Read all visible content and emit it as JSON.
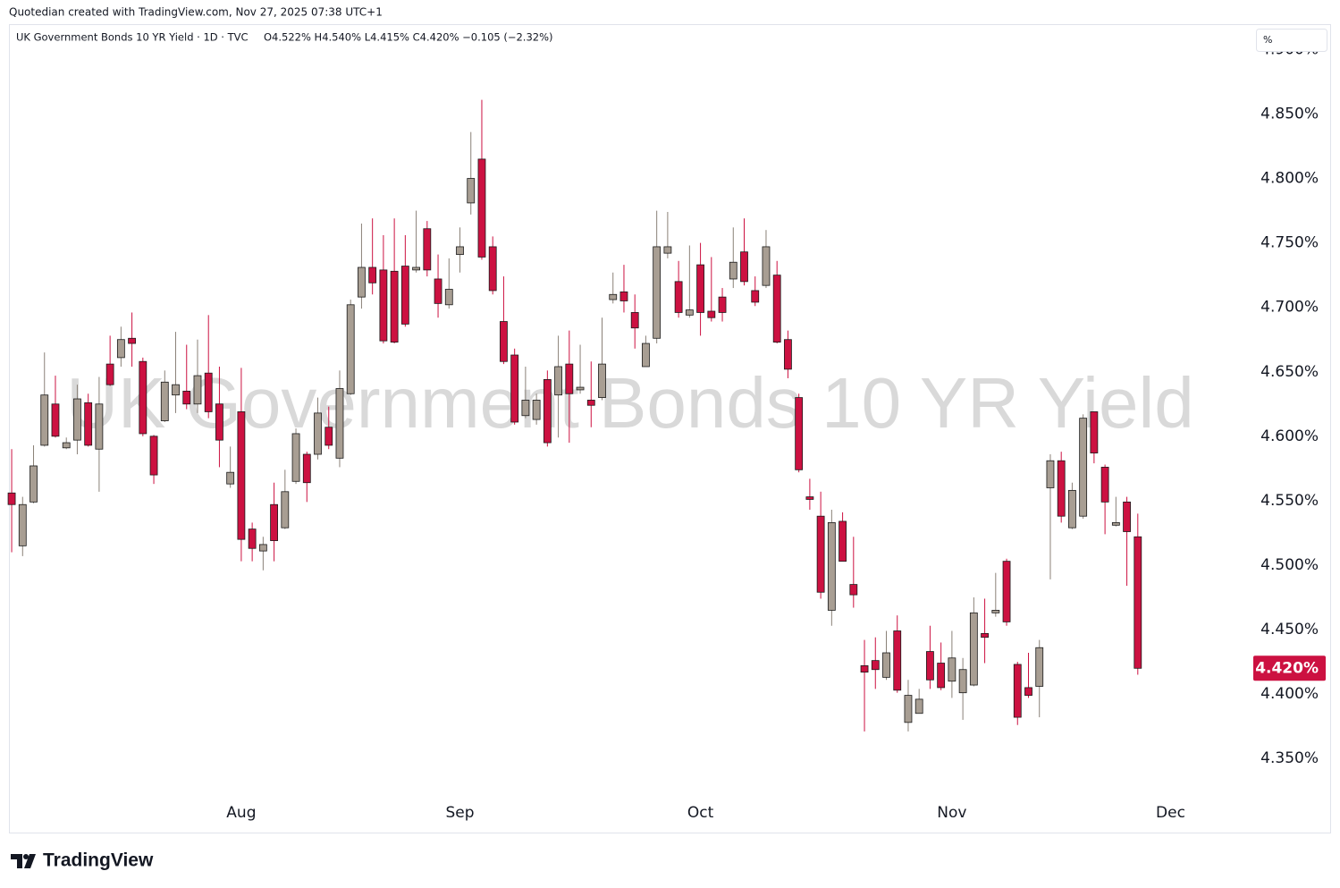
{
  "credit": "Quotedian created with TradingView.com, Nov 27, 2025 07:38 UTC+1",
  "logo": "TradingView",
  "unit_button": "%",
  "chart_data": {
    "type": "candlestick",
    "title": "UK Government Bonds 10 YR Yield · 1D · TVC",
    "ohlc_text": "O4.522% H4.540% L4.415% C4.420% −0.105 (−2.32%)",
    "watermark": "UK Government Bonds 10 YR Yield",
    "up_color": "#a89e93",
    "down_color": "#cc1141",
    "border_color": "#1a1a1a",
    "grid": false,
    "xlim": [
      -0.25,
      113.4
    ],
    "xticks": [
      {
        "value": 21,
        "label": "Aug"
      },
      {
        "value": 41,
        "label": "Sep"
      },
      {
        "value": 63,
        "label": "Oct"
      },
      {
        "value": 86,
        "label": "Nov"
      },
      {
        "value": 106,
        "label": "Dec"
      }
    ],
    "ylim": [
      4.321,
      4.919
    ],
    "yticks": [
      {
        "value": 4.35,
        "label": "4.350%"
      },
      {
        "value": 4.4,
        "label": "4.400%"
      },
      {
        "value": 4.45,
        "label": "4.450%"
      },
      {
        "value": 4.5,
        "label": "4.500%"
      },
      {
        "value": 4.55,
        "label": "4.550%"
      },
      {
        "value": 4.6,
        "label": "4.600%"
      },
      {
        "value": 4.65,
        "label": "4.650%"
      },
      {
        "value": 4.7,
        "label": "4.700%"
      },
      {
        "value": 4.75,
        "label": "4.750%"
      },
      {
        "value": 4.8,
        "label": "4.800%"
      },
      {
        "value": 4.85,
        "label": "4.850%"
      },
      {
        "value": 4.9,
        "label": "4.900%"
      }
    ],
    "last_price": {
      "value": 4.42,
      "label": "4.420%"
    },
    "open": [
      4.556,
      4.515,
      4.549,
      4.593,
      4.625,
      4.591,
      4.597,
      4.626,
      4.59,
      4.656,
      4.661,
      4.676,
      4.658,
      4.6,
      4.612,
      4.632,
      4.635,
      4.625,
      4.649,
      4.625,
      4.563,
      4.619,
      4.528,
      4.511,
      4.547,
      4.529,
      4.565,
      4.586,
      4.586,
      4.607,
      4.583,
      4.633,
      4.708,
      4.731,
      4.729,
      4.728,
      4.732,
      4.729,
      4.761,
      4.722,
      4.702,
      4.741,
      4.781,
      4.815,
      4.747,
      4.689,
      4.663,
      4.616,
      4.613,
      4.644,
      4.632,
      4.656,
      4.636,
      4.628,
      4.63,
      4.706,
      4.712,
      4.696,
      4.654,
      4.676,
      4.742,
      4.72,
      4.694,
      4.733,
      4.697,
      4.708,
      4.722,
      4.743,
      4.713,
      4.717,
      4.725,
      4.675,
      4.63,
      4.553,
      4.538,
      4.465,
      4.534,
      4.485,
      4.422,
      4.426,
      4.413,
      4.449,
      4.378,
      4.385,
      4.433,
      4.424,
      4.41,
      4.401,
      4.407,
      4.447,
      4.463,
      4.503,
      4.423,
      4.405,
      4.406,
      4.56,
      4.581,
      4.529,
      4.538,
      4.619,
      4.576,
      4.531,
      4.549,
      4.522
    ],
    "high": [
      4.59,
      4.553,
      4.593,
      4.665,
      4.647,
      4.599,
      4.64,
      4.633,
      4.646,
      4.678,
      4.685,
      4.696,
      4.661,
      4.601,
      4.651,
      4.681,
      4.671,
      4.675,
      4.694,
      4.654,
      4.592,
      4.653,
      4.533,
      4.522,
      4.564,
      4.574,
      4.606,
      4.588,
      4.63,
      4.623,
      4.651,
      4.706,
      4.765,
      4.769,
      4.756,
      4.769,
      4.756,
      4.775,
      4.767,
      4.741,
      4.738,
      4.762,
      4.836,
      4.861,
      4.755,
      4.724,
      4.668,
      4.654,
      4.633,
      4.651,
      4.678,
      4.682,
      4.671,
      4.658,
      4.692,
      4.727,
      4.733,
      4.71,
      4.678,
      4.775,
      4.774,
      4.736,
      4.748,
      4.75,
      4.739,
      4.715,
      4.762,
      4.769,
      4.724,
      4.76,
      4.736,
      4.682,
      4.633,
      4.567,
      4.557,
      4.543,
      4.541,
      4.522,
      4.442,
      4.444,
      4.449,
      4.461,
      4.411,
      4.404,
      4.453,
      4.44,
      4.449,
      4.428,
      4.475,
      4.474,
      4.494,
      4.505,
      4.425,
      4.432,
      4.442,
      4.586,
      4.588,
      4.564,
      4.617,
      4.619,
      4.578,
      4.553,
      4.553,
      4.54
    ],
    "low": [
      4.51,
      4.507,
      4.548,
      4.592,
      4.599,
      4.59,
      4.586,
      4.592,
      4.557,
      4.639,
      4.654,
      4.654,
      4.6,
      4.563,
      4.611,
      4.618,
      4.621,
      4.618,
      4.614,
      4.576,
      4.56,
      4.503,
      4.503,
      4.496,
      4.503,
      4.528,
      4.563,
      4.549,
      4.582,
      4.59,
      4.576,
      4.632,
      4.699,
      4.71,
      4.672,
      4.672,
      4.685,
      4.727,
      4.724,
      4.692,
      4.699,
      4.727,
      4.772,
      4.737,
      4.71,
      4.656,
      4.609,
      4.614,
      4.609,
      4.592,
      4.599,
      4.595,
      4.633,
      4.607,
      4.628,
      4.703,
      4.696,
      4.668,
      4.654,
      4.672,
      4.738,
      4.692,
      4.692,
      4.678,
      4.689,
      4.689,
      4.715,
      4.717,
      4.701,
      4.715,
      4.672,
      4.645,
      4.572,
      4.543,
      4.474,
      4.453,
      4.503,
      4.467,
      4.371,
      4.404,
      4.411,
      4.401,
      4.371,
      4.385,
      4.404,
      4.403,
      4.397,
      4.38,
      4.406,
      4.424,
      4.46,
      4.453,
      4.376,
      4.397,
      4.382,
      4.489,
      4.533,
      4.528,
      4.536,
      4.579,
      4.524,
      4.53,
      4.484,
      4.415
    ],
    "close": [
      4.547,
      4.547,
      4.577,
      4.632,
      4.6,
      4.595,
      4.629,
      4.593,
      4.625,
      4.64,
      4.675,
      4.672,
      4.602,
      4.57,
      4.642,
      4.64,
      4.625,
      4.647,
      4.619,
      4.597,
      4.572,
      4.52,
      4.513,
      4.516,
      4.519,
      4.557,
      4.602,
      4.564,
      4.618,
      4.593,
      4.637,
      4.702,
      4.731,
      4.719,
      4.674,
      4.673,
      4.687,
      4.731,
      4.729,
      4.703,
      4.714,
      4.747,
      4.8,
      4.739,
      4.713,
      4.658,
      4.611,
      4.628,
      4.628,
      4.595,
      4.654,
      4.633,
      4.638,
      4.624,
      4.656,
      4.71,
      4.705,
      4.684,
      4.672,
      4.747,
      4.747,
      4.696,
      4.698,
      4.696,
      4.692,
      4.696,
      4.735,
      4.72,
      4.704,
      4.747,
      4.673,
      4.652,
      4.574,
      4.551,
      4.479,
      4.533,
      4.503,
      4.477,
      4.417,
      4.419,
      4.432,
      4.403,
      4.399,
      4.396,
      4.411,
      4.405,
      4.428,
      4.419,
      4.463,
      4.444,
      4.465,
      4.456,
      4.382,
      4.399,
      4.436,
      4.581,
      4.538,
      4.558,
      4.614,
      4.587,
      4.549,
      4.533,
      4.526,
      4.42
    ]
  }
}
